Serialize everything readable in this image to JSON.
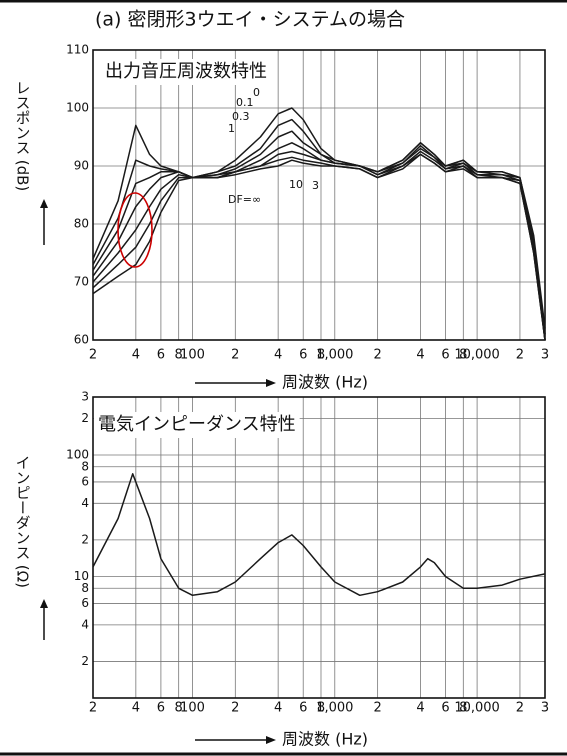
{
  "title": "(a) 密閉形3ウエイ・システムの場合",
  "chart_data": [
    {
      "type": "line",
      "title": "出力音圧周波数特性",
      "y_label": "レスポンス (dB)",
      "x_label": "周波数 (Hz)",
      "xlog": true,
      "grid": true,
      "xlim": [
        20,
        30000
      ],
      "ylim": [
        60,
        110
      ],
      "xticks": [
        {
          "value": 20,
          "label": "2"
        },
        {
          "value": 40,
          "label": "4"
        },
        {
          "value": 60,
          "label": "6"
        },
        {
          "value": 80,
          "label": "8"
        },
        100,
        {
          "value": 200,
          "label": "2"
        },
        {
          "value": 400,
          "label": "4"
        },
        {
          "value": 600,
          "label": "6"
        },
        {
          "value": 800,
          "label": "8"
        },
        {
          "value": 1000,
          "label": "1,000"
        },
        {
          "value": 2000,
          "label": "2"
        },
        {
          "value": 4000,
          "label": "4"
        },
        {
          "value": 6000,
          "label": "6"
        },
        {
          "value": 8000,
          "label": "8"
        },
        {
          "value": 10000,
          "label": "10,000"
        },
        {
          "value": 20000,
          "label": "2"
        },
        {
          "value": 30000,
          "label": "3"
        }
      ],
      "yticks": [
        60,
        70,
        80,
        90,
        100,
        110
      ],
      "x": [
        20,
        30,
        40,
        50,
        60,
        80,
        100,
        150,
        200,
        300,
        400,
        500,
        600,
        800,
        1000,
        1500,
        2000,
        3000,
        4000,
        5000,
        6000,
        8000,
        10000,
        15000,
        20000,
        25000,
        30000
      ],
      "series": [
        {
          "name": "0",
          "color": "#1a1a1a",
          "values": [
            74,
            84,
            97,
            92,
            90,
            89,
            88,
            89,
            91,
            95,
            99,
            100,
            98,
            93,
            91,
            90,
            89,
            91,
            94,
            92,
            90,
            91,
            89,
            89,
            88,
            78,
            62
          ]
        },
        {
          "name": "0.1",
          "color": "#1a1a1a",
          "values": [
            73,
            81,
            91,
            90,
            89.5,
            89,
            88,
            89,
            90,
            93,
            97,
            98,
            96,
            92,
            91,
            90,
            89,
            91,
            94,
            92,
            90,
            91,
            89,
            89,
            88,
            77,
            61
          ]
        },
        {
          "name": "0.3",
          "color": "#1a1a1a",
          "values": [
            72,
            79,
            87,
            88,
            89,
            89,
            88,
            88.5,
            89.5,
            92,
            95,
            96,
            94,
            92,
            90.5,
            90,
            89,
            90.5,
            93.5,
            91.5,
            90,
            90.5,
            89,
            88.5,
            88,
            77,
            61
          ]
        },
        {
          "name": "1",
          "color": "#1a1a1a",
          "values": [
            71,
            77,
            83,
            86,
            88,
            89,
            88,
            88.5,
            89,
            91,
            93,
            94,
            93,
            91,
            90.5,
            90,
            88.5,
            90.5,
            93,
            91.5,
            89.5,
            90.5,
            88.5,
            88.5,
            87.5,
            76,
            60
          ]
        },
        {
          "name": "3",
          "color": "#1a1a1a",
          "values": [
            70,
            75,
            79,
            83,
            86,
            88.5,
            88,
            88,
            89,
            90,
            92,
            92.5,
            92,
            91,
            90.5,
            90,
            88.5,
            90,
            92.5,
            91,
            89.5,
            90,
            88.5,
            88,
            87.5,
            76,
            60
          ]
        },
        {
          "name": "10",
          "color": "#1a1a1a",
          "values": [
            69,
            73,
            76,
            80,
            84,
            88,
            88,
            88,
            89,
            90,
            91,
            91.5,
            91,
            90.5,
            90,
            89.5,
            88,
            90,
            92,
            90.5,
            89,
            90,
            88,
            88,
            87,
            75,
            60
          ]
        },
        {
          "name": "DF=∞",
          "color": "#1a1a1a",
          "values": [
            68,
            71,
            73,
            77,
            82,
            87.5,
            88,
            88,
            88.5,
            89.5,
            90,
            91,
            90.5,
            90,
            90,
            89.5,
            88,
            89.5,
            92,
            90.5,
            89,
            89.5,
            88,
            88,
            87,
            75,
            60
          ]
        }
      ]
    },
    {
      "type": "line",
      "title": "電気インピーダンス特性",
      "y_label": "インピーダンス (Ω)",
      "x_label": "周波数 (Hz)",
      "xlog": true,
      "ylog": true,
      "grid": true,
      "xlim": [
        20,
        30000
      ],
      "ylim": [
        1,
        300
      ],
      "xticks": [
        {
          "value": 20,
          "label": "2"
        },
        {
          "value": 40,
          "label": "4"
        },
        {
          "value": 60,
          "label": "6"
        },
        {
          "value": 80,
          "label": "8"
        },
        100,
        {
          "value": 200,
          "label": "2"
        },
        {
          "value": 400,
          "label": "4"
        },
        {
          "value": 600,
          "label": "6"
        },
        {
          "value": 800,
          "label": "8"
        },
        {
          "value": 1000,
          "label": "1,000"
        },
        {
          "value": 2000,
          "label": "2"
        },
        {
          "value": 4000,
          "label": "4"
        },
        {
          "value": 6000,
          "label": "6"
        },
        {
          "value": 8000,
          "label": "8"
        },
        {
          "value": 10000,
          "label": "10,000"
        },
        {
          "value": 20000,
          "label": "2"
        },
        {
          "value": 30000,
          "label": "3"
        }
      ],
      "yticks": [
        {
          "value": 2,
          "label": "2"
        },
        {
          "value": 4,
          "label": "4"
        },
        {
          "value": 6,
          "label": "6"
        },
        {
          "value": 8,
          "label": "8"
        },
        10,
        {
          "value": 20,
          "label": "2"
        },
        {
          "value": 40,
          "label": "4"
        },
        {
          "value": 60,
          "label": "6"
        },
        {
          "value": 80,
          "label": "8"
        },
        100,
        {
          "value": 200,
          "label": "2"
        },
        {
          "value": 300,
          "label": "3"
        }
      ],
      "x": [
        20,
        30,
        38,
        50,
        60,
        80,
        100,
        150,
        200,
        300,
        400,
        500,
        600,
        800,
        1000,
        1500,
        2000,
        3000,
        4000,
        4500,
        5000,
        6000,
        8000,
        10000,
        15000,
        20000,
        30000
      ],
      "series": [
        {
          "color": "#1a1a1a",
          "values": [
            12,
            30,
            70,
            30,
            14,
            8,
            7,
            7.5,
            9,
            14,
            19,
            22,
            18,
            12,
            9,
            7,
            7.5,
            9,
            12,
            14,
            13,
            10,
            8,
            8,
            8.5,
            9.5,
            10.5
          ]
        }
      ]
    }
  ]
}
